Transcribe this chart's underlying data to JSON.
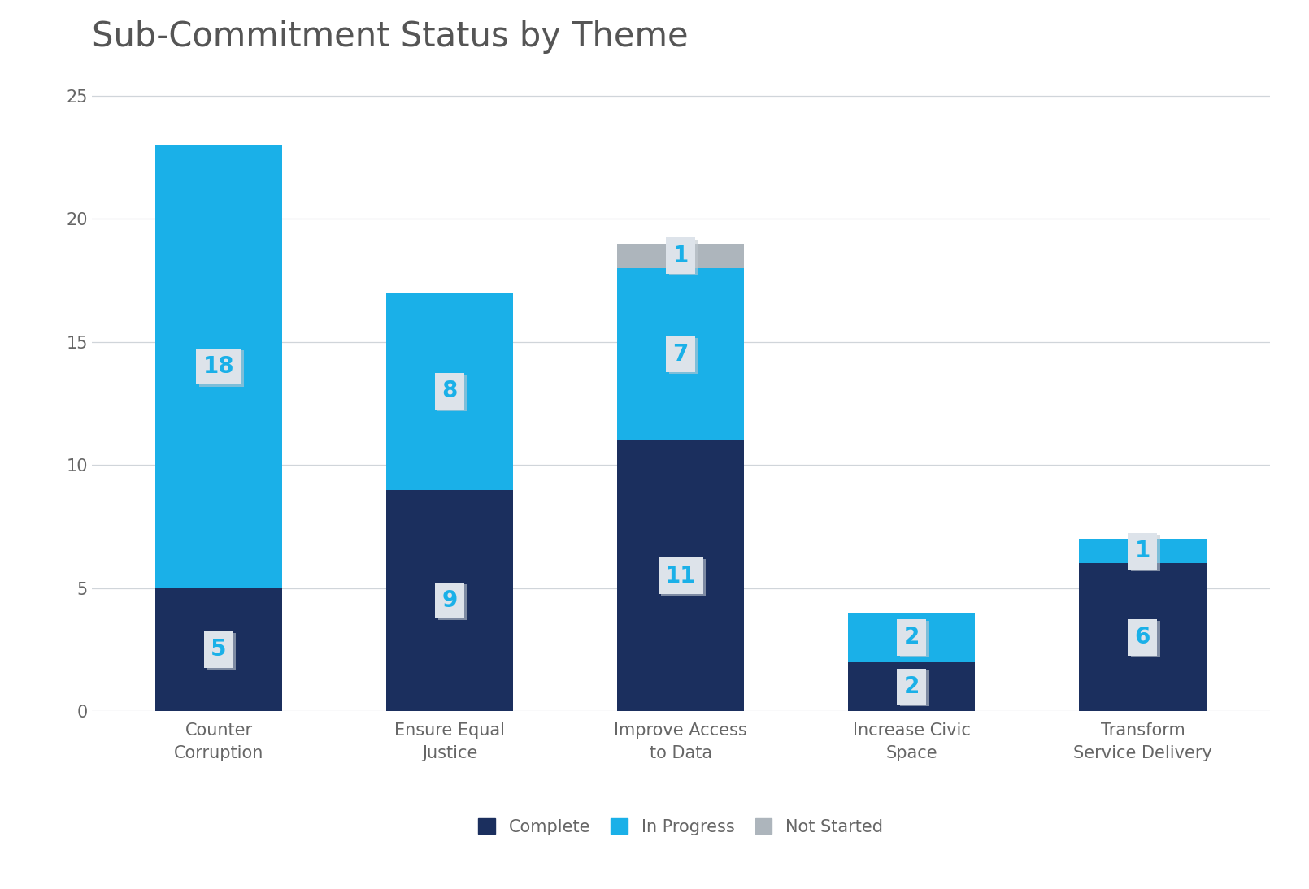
{
  "title": "Sub-Commitment Status by Theme",
  "categories": [
    "Counter\nCorruption",
    "Ensure Equal\nJustice",
    "Improve Access\nto Data",
    "Increase Civic\nSpace",
    "Transform\nService Delivery"
  ],
  "complete": [
    5,
    9,
    11,
    2,
    6
  ],
  "in_progress": [
    18,
    8,
    7,
    2,
    1
  ],
  "not_started": [
    0,
    0,
    1,
    0,
    0
  ],
  "color_complete": "#1b2f5e",
  "color_in_progress": "#1ab0e8",
  "color_not_started": "#adb5bc",
  "label_color": "#1ab0e8",
  "label_bg_color": "#dde3ea",
  "ylim": [
    0,
    26
  ],
  "yticks": [
    0,
    5,
    10,
    15,
    20,
    25
  ],
  "title_fontsize": 30,
  "label_fontsize": 20,
  "legend_fontsize": 15,
  "tick_fontsize": 15,
  "title_color": "#555555",
  "tick_color": "#666666",
  "background_color": "#ffffff",
  "bar_width": 0.55
}
